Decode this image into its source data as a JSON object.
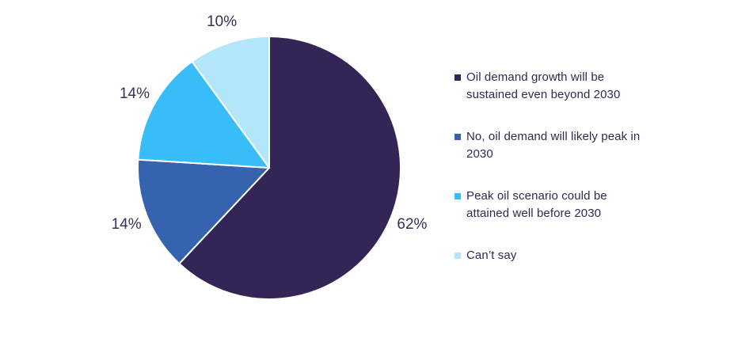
{
  "chart_data": {
    "type": "pie",
    "title": "",
    "legend_position": "right",
    "start_angle_deg": 0,
    "direction": "clockwise",
    "background_color": "#ffffff",
    "slice_border_color": "#ffffff",
    "data_label_color": "#3a2d59",
    "legend_text_color": "#2f2a54",
    "categories": [
      "Oil demand growth will be sustained even beyond 2030",
      "No, oil demand will likely peak in 2030",
      "Peak oil scenario could be attained well before 2030",
      "Can’t say"
    ],
    "values": [
      62,
      14,
      14,
      10
    ],
    "slices": [
      {
        "label": "Oil demand growth will be sustained even beyond 2030",
        "value": 62,
        "display": "62%",
        "color": "#332556"
      },
      {
        "label": "No, oil demand will likely peak in 2030",
        "value": 14,
        "display": "14%",
        "color": "#3563ad"
      },
      {
        "label": "Peak oil scenario could be attained well before 2030",
        "value": 14,
        "display": "14%",
        "color": "#38bdf8"
      },
      {
        "label": "Can’t say",
        "value": 10,
        "display": "10%",
        "color": "#b3e6fb"
      }
    ]
  }
}
